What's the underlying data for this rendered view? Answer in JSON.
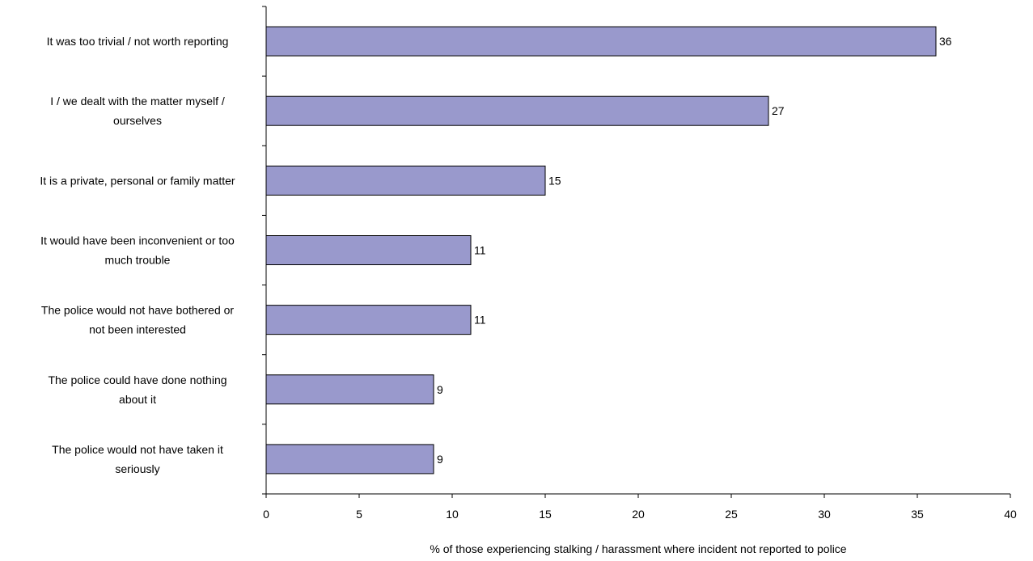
{
  "chart_data": {
    "type": "bar",
    "orientation": "horizontal",
    "categories": [
      [
        "It was too trivial / not worth reporting"
      ],
      [
        "I / we dealt with the matter myself /",
        "ourselves"
      ],
      [
        "It is a private, personal or family matter"
      ],
      [
        "It would have been inconvenient or too",
        "much trouble"
      ],
      [
        "The police would not have bothered or",
        "not been interested"
      ],
      [
        "The police could have done nothing",
        "about it"
      ],
      [
        "The police would not have taken it",
        "seriously"
      ]
    ],
    "values": [
      36,
      27,
      15,
      11,
      11,
      9,
      9
    ],
    "xlabel": "% of those experiencing stalking / harassment where incident not reported to police",
    "ylabel": "",
    "xlim": [
      0,
      40
    ],
    "xticks": [
      0,
      5,
      10,
      15,
      20,
      25,
      30,
      35,
      40
    ],
    "grid": false,
    "bar_color": "#9999cc",
    "bar_stroke": "#000000",
    "data_labels": true
  }
}
